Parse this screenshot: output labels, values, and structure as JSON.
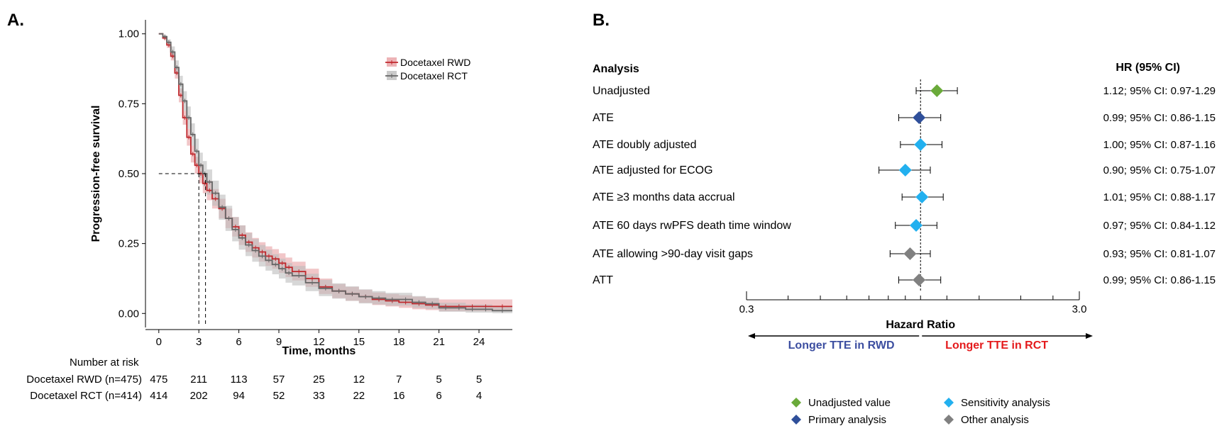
{
  "panel_a": {
    "letter": "A.",
    "number_at_risk_title": "Number at risk",
    "risk_table": [
      {
        "label": "Docetaxel RWD (n=475)",
        "values": [
          "475",
          "211",
          "113",
          "57",
          "25",
          "12",
          "7",
          "5",
          "5"
        ]
      },
      {
        "label": "Docetaxel RCT (n=414)",
        "values": [
          "414",
          "202",
          "94",
          "52",
          "33",
          "22",
          "16",
          "6",
          "4"
        ]
      }
    ]
  },
  "panel_b": {
    "letter": "B.",
    "analysis_header": "Analysis",
    "hr_header": "HR (95% CI)",
    "direction_left": "Longer TTE in RWD",
    "direction_right": "Longer TTE in RCT",
    "direction_left_color": "#3c4ea0",
    "direction_right_color": "#e41a1c",
    "legend": [
      {
        "label": "Unadjusted value",
        "color": "#6aaa3a"
      },
      {
        "label": "Primary analysis",
        "color": "#2f4f9a"
      },
      {
        "label": "Sensitivity analysis",
        "color": "#22b0ef"
      },
      {
        "label": "Other analysis",
        "color": "#808080"
      }
    ]
  },
  "chart_data": [
    {
      "type": "line",
      "subtype": "kaplan-meier",
      "xlabel": "Time, months",
      "ylabel": "Progression-free survival",
      "xlim": [
        -1,
        26.5
      ],
      "ylim": [
        -0.05,
        1.05
      ],
      "xticks": [
        0,
        3,
        6,
        9,
        12,
        15,
        18,
        21,
        24
      ],
      "yticks": [
        0.0,
        0.25,
        0.5,
        0.75,
        1.0
      ],
      "ytick_labels": [
        "0.00",
        "0.25",
        "0.50",
        "0.75",
        "1.00"
      ],
      "median_reference": {
        "y": 0.5,
        "x": [
          3.0,
          3.5
        ]
      },
      "legend_position": "top-right",
      "series": [
        {
          "name": "Docetaxel RWD",
          "color": "#c0282d",
          "ci_color": "#e8a0a4",
          "x": [
            0,
            0.3,
            0.6,
            0.9,
            1.2,
            1.5,
            1.8,
            2.1,
            2.4,
            2.7,
            3.0,
            3.3,
            3.6,
            4.0,
            4.5,
            5.0,
            5.5,
            6.0,
            6.5,
            7.0,
            7.5,
            8.0,
            8.5,
            9.0,
            9.5,
            10.0,
            11.0,
            12.0,
            13.0,
            14.0,
            15.0,
            16.0,
            17.0,
            18.0,
            19.0,
            20.0,
            21.0,
            22.0,
            23.0,
            24.0,
            25.0,
            26.5
          ],
          "y": [
            1.0,
            0.985,
            0.96,
            0.92,
            0.86,
            0.78,
            0.7,
            0.63,
            0.57,
            0.53,
            0.5,
            0.465,
            0.44,
            0.41,
            0.375,
            0.34,
            0.31,
            0.28,
            0.255,
            0.235,
            0.22,
            0.205,
            0.195,
            0.18,
            0.165,
            0.15,
            0.125,
            0.095,
            0.08,
            0.07,
            0.06,
            0.05,
            0.045,
            0.04,
            0.035,
            0.03,
            0.025,
            0.025,
            0.025,
            0.025,
            0.025,
            0.025
          ],
          "ci_lower": [
            1.0,
            0.98,
            0.95,
            0.905,
            0.84,
            0.755,
            0.675,
            0.6,
            0.54,
            0.5,
            0.465,
            0.43,
            0.405,
            0.375,
            0.34,
            0.305,
            0.275,
            0.245,
            0.22,
            0.2,
            0.185,
            0.17,
            0.16,
            0.145,
            0.13,
            0.118,
            0.095,
            0.07,
            0.055,
            0.045,
            0.038,
            0.03,
            0.025,
            0.02,
            0.015,
            0.012,
            0.008,
            0.008,
            0.008,
            0.008,
            0.008,
            0.008
          ],
          "ci_upper": [
            1.0,
            0.99,
            0.97,
            0.935,
            0.88,
            0.805,
            0.725,
            0.66,
            0.6,
            0.56,
            0.535,
            0.5,
            0.475,
            0.445,
            0.41,
            0.375,
            0.345,
            0.315,
            0.29,
            0.27,
            0.255,
            0.24,
            0.23,
            0.215,
            0.2,
            0.185,
            0.16,
            0.125,
            0.105,
            0.095,
            0.085,
            0.075,
            0.07,
            0.065,
            0.06,
            0.055,
            0.05,
            0.05,
            0.05,
            0.05,
            0.05,
            0.05
          ]
        },
        {
          "name": "Docetaxel RCT",
          "color": "#666666",
          "ci_color": "#bdbdbd",
          "x": [
            0,
            0.3,
            0.6,
            0.9,
            1.2,
            1.5,
            1.8,
            2.1,
            2.4,
            2.7,
            3.0,
            3.3,
            3.6,
            4.0,
            4.5,
            5.0,
            5.5,
            6.0,
            6.5,
            7.0,
            7.5,
            8.0,
            8.5,
            9.0,
            9.5,
            10.0,
            11.0,
            12.0,
            13.0,
            14.0,
            15.0,
            16.0,
            17.0,
            18.0,
            19.0,
            20.0,
            21.0,
            22.0,
            23.0,
            24.0,
            25.0,
            26.5
          ],
          "y": [
            1.0,
            0.99,
            0.97,
            0.935,
            0.88,
            0.82,
            0.76,
            0.7,
            0.64,
            0.58,
            0.53,
            0.5,
            0.47,
            0.43,
            0.38,
            0.34,
            0.3,
            0.27,
            0.245,
            0.225,
            0.205,
            0.19,
            0.175,
            0.16,
            0.145,
            0.135,
            0.11,
            0.09,
            0.08,
            0.07,
            0.06,
            0.055,
            0.05,
            0.05,
            0.04,
            0.035,
            0.02,
            0.02,
            0.015,
            0.015,
            0.01,
            0.01
          ],
          "ci_lower": [
            1.0,
            0.985,
            0.96,
            0.915,
            0.855,
            0.79,
            0.725,
            0.66,
            0.6,
            0.535,
            0.485,
            0.455,
            0.425,
            0.385,
            0.335,
            0.295,
            0.258,
            0.228,
            0.205,
            0.185,
            0.168,
            0.153,
            0.14,
            0.125,
            0.11,
            0.1,
            0.08,
            0.062,
            0.053,
            0.045,
            0.036,
            0.032,
            0.028,
            0.028,
            0.02,
            0.016,
            0.006,
            0.006,
            0.003,
            0.003,
            0.001,
            0.001
          ],
          "ci_upper": [
            1.0,
            0.995,
            0.98,
            0.955,
            0.905,
            0.85,
            0.795,
            0.74,
            0.68,
            0.625,
            0.575,
            0.545,
            0.515,
            0.475,
            0.425,
            0.385,
            0.345,
            0.315,
            0.288,
            0.266,
            0.245,
            0.228,
            0.212,
            0.196,
            0.18,
            0.17,
            0.142,
            0.12,
            0.108,
            0.097,
            0.086,
            0.08,
            0.074,
            0.074,
            0.062,
            0.056,
            0.038,
            0.038,
            0.032,
            0.032,
            0.025,
            0.025
          ]
        }
      ]
    },
    {
      "type": "forest",
      "xlabel": "Hazard Ratio",
      "x_scale": "log",
      "xlim": [
        0.3,
        3.0
      ],
      "xtick_labels": [
        "0.3",
        "3.0"
      ],
      "reference_line": 1.0,
      "rows": [
        {
          "label": "Unadjusted",
          "hr": 1.12,
          "lower": 0.97,
          "upper": 1.29,
          "text": "1.12; 95% CI: 0.97-1.29",
          "category": "Unadjusted value",
          "color": "#6aaa3a"
        },
        {
          "label": "ATE",
          "hr": 0.99,
          "lower": 0.86,
          "upper": 1.15,
          "text": "0.99; 95% CI: 0.86-1.15",
          "category": "Primary analysis",
          "color": "#2f4f9a"
        },
        {
          "label": "ATE doubly adjusted",
          "hr": 1.0,
          "lower": 0.87,
          "upper": 1.16,
          "text": "1.00; 95% CI: 0.87-1.16",
          "category": "Sensitivity analysis",
          "color": "#22b0ef"
        },
        {
          "label": "ATE adjusted for ECOG",
          "hr": 0.9,
          "lower": 0.75,
          "upper": 1.07,
          "text": "0.90; 95% CI: 0.75-1.07",
          "category": "Sensitivity analysis",
          "color": "#22b0ef"
        },
        {
          "label": "ATE ≥3 months data accrual",
          "hr": 1.01,
          "lower": 0.88,
          "upper": 1.17,
          "text": "1.01; 95% CI: 0.88-1.17",
          "category": "Sensitivity analysis",
          "color": "#22b0ef"
        },
        {
          "label": "ATE 60 days rwPFS death time window",
          "hr": 0.97,
          "lower": 0.84,
          "upper": 1.12,
          "text": "0.97; 95% CI: 0.84-1.12",
          "category": "Sensitivity analysis",
          "color": "#22b0ef"
        },
        {
          "label": "ATE allowing >90-day visit gaps",
          "hr": 0.93,
          "lower": 0.81,
          "upper": 1.07,
          "text": "0.93; 95% CI: 0.81-1.07",
          "category": "Other analysis",
          "color": "#808080"
        },
        {
          "label": "ATT",
          "hr": 0.99,
          "lower": 0.86,
          "upper": 1.15,
          "text": "0.99; 95% CI: 0.86-1.15",
          "category": "Other analysis",
          "color": "#808080"
        }
      ]
    }
  ]
}
